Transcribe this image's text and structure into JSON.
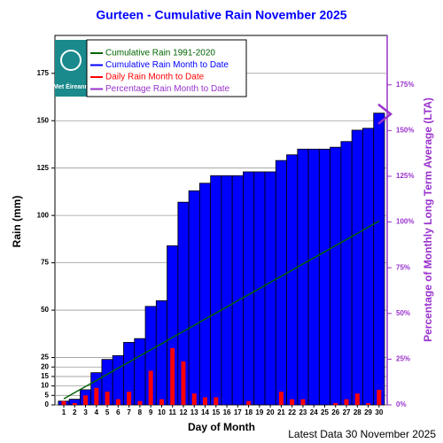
{
  "chart_data": {
    "type": "bar",
    "title": "Gurteen - Cumulative Rain November   2025",
    "x_label": "Day of Month",
    "y_label": "Rain (mm)",
    "y2_label": "Percentage  of Monthly Long Term Average (LTA)",
    "footer": "Latest Data 30 November 2025",
    "logo_text": "Met Éireann",
    "categories": [
      1,
      2,
      3,
      4,
      5,
      6,
      7,
      8,
      9,
      10,
      11,
      12,
      13,
      14,
      15,
      16,
      17,
      18,
      19,
      20,
      21,
      22,
      23,
      24,
      25,
      26,
      27,
      28,
      29,
      30
    ],
    "series": [
      {
        "name": "Cumulative Rain 1991-2020",
        "color": "#006400",
        "kind": "line",
        "values": [
          3.2,
          6.5,
          9.7,
          12.9,
          16.2,
          19.4,
          22.6,
          25.9,
          29.1,
          32.3,
          35.6,
          38.8,
          42.0,
          45.3,
          48.5,
          51.7,
          55.0,
          58.2,
          61.4,
          64.7,
          67.9,
          71.1,
          74.4,
          77.6,
          80.8,
          84.1,
          87.3,
          90.5,
          93.8,
          97.0
        ]
      },
      {
        "name": "Cumulative Rain Month to Date",
        "color": "#0000ff",
        "kind": "bar",
        "values": [
          2,
          3,
          8,
          17,
          24,
          26,
          33,
          35,
          52,
          55,
          84,
          107,
          113,
          117,
          121,
          121,
          121,
          123,
          123,
          123,
          129,
          132,
          135,
          135,
          135,
          136,
          139,
          145,
          146,
          154
        ]
      },
      {
        "name": "Daily Rain Month to Date",
        "color": "#ff0000",
        "kind": "narrow-bar",
        "values": [
          2,
          1,
          5,
          9,
          7,
          3,
          7,
          2,
          18,
          3,
          30,
          23,
          6,
          4,
          4,
          0,
          0,
          2,
          0,
          0,
          7,
          3,
          3,
          0,
          0,
          1,
          3,
          6,
          1,
          8
        ]
      },
      {
        "name": "Percentage Rain Month to Date",
        "color": "#9932cc",
        "kind": "marker",
        "axis": "y2",
        "values": [
          null,
          null,
          null,
          null,
          null,
          null,
          null,
          null,
          null,
          null,
          null,
          null,
          null,
          null,
          null,
          null,
          null,
          null,
          null,
          null,
          null,
          null,
          null,
          null,
          null,
          null,
          null,
          null,
          null,
          159
        ]
      }
    ],
    "ylim": [
      0,
      195
    ],
    "yticks": [
      0,
      5,
      10,
      15,
      20,
      25,
      50,
      75,
      100,
      125,
      150,
      175
    ],
    "y2lim": [
      0,
      202
    ],
    "y2ticks": [
      {
        "value": 0,
        "label": "0%"
      },
      {
        "value": 25,
        "label": "25%"
      },
      {
        "value": 50,
        "label": "50%"
      },
      {
        "value": 75,
        "label": "75%"
      },
      {
        "value": 100,
        "label": "100%"
      },
      {
        "value": 125,
        "label": "125%"
      },
      {
        "value": 150,
        "label": "150%"
      },
      {
        "value": 175,
        "label": "175%"
      }
    ],
    "grid": true
  }
}
